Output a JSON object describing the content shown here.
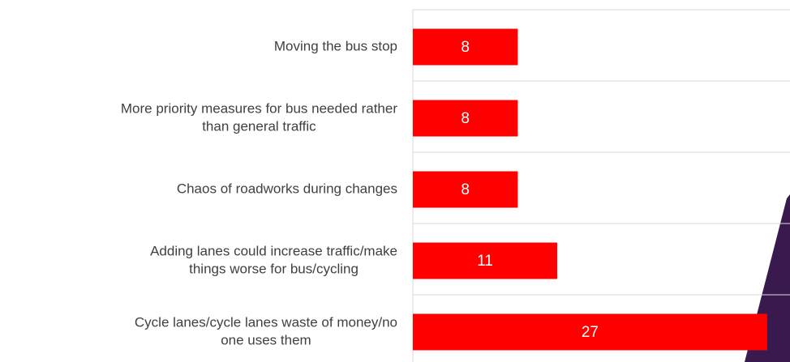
{
  "chart_data": {
    "type": "barh",
    "categories": [
      [
        "Moving the bus stop"
      ],
      [
        "More priority measures for bus needed rather",
        "than general traffic"
      ],
      [
        "Chaos of roadworks during changes"
      ],
      [
        "Adding lanes could increase traffic/make",
        "things worse for bus/cycling"
      ],
      [
        "Cycle lanes/cycle lanes waste of money/no",
        "one uses them"
      ]
    ],
    "values": [
      8,
      8,
      8,
      11,
      27
    ],
    "color": "#ff0000",
    "xlim": [
      0,
      28
    ],
    "grid": true
  }
}
